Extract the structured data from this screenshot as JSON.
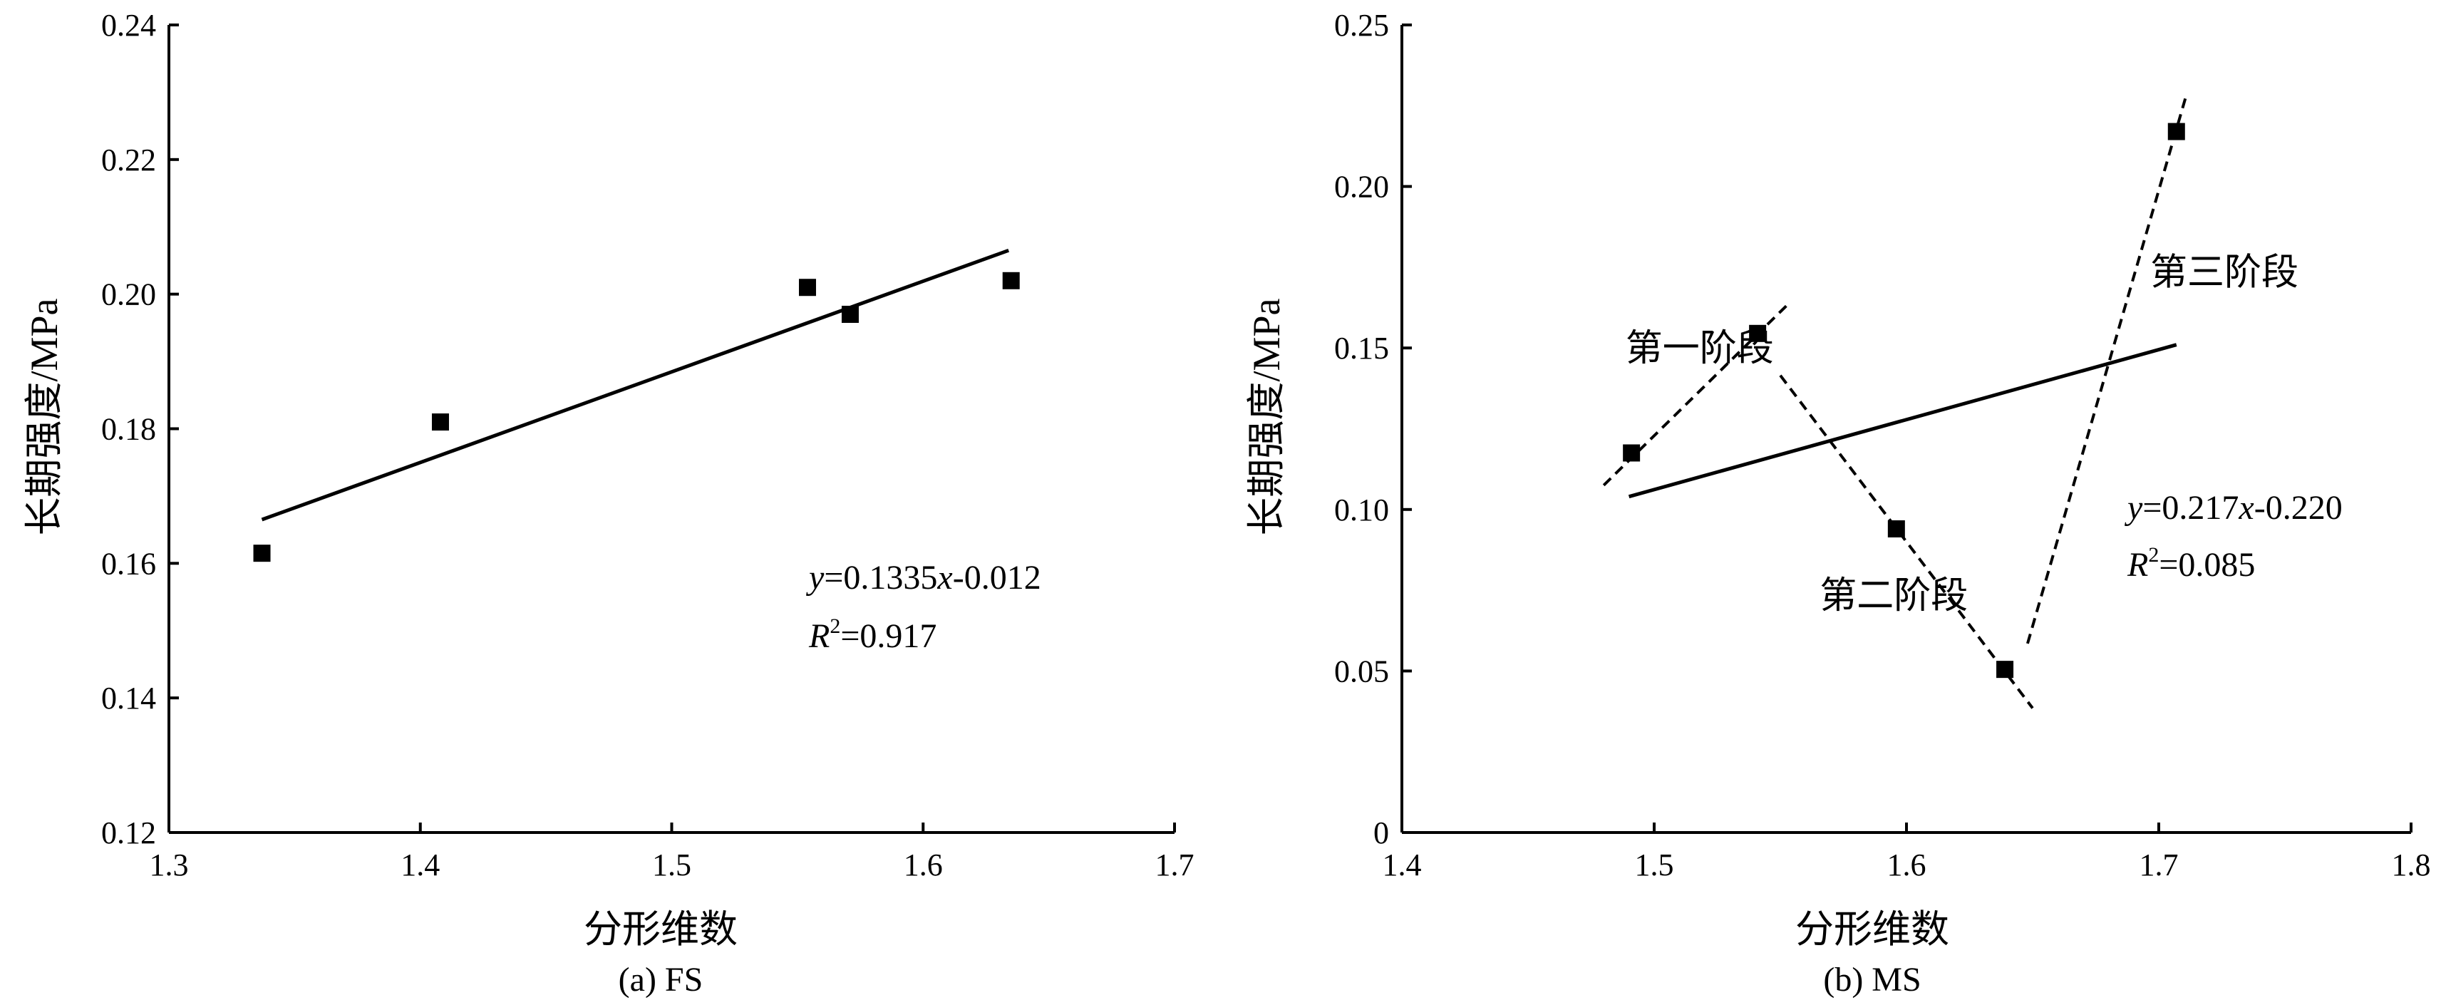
{
  "chart_data": [
    {
      "type": "scatter",
      "caption": "(a) FS",
      "xlabel": "分形维数",
      "ylabel": "长期强度/MPa",
      "xlim": [
        1.3,
        1.7
      ],
      "ylim": [
        0.12,
        0.24
      ],
      "xticks": [
        1.3,
        1.4,
        1.5,
        1.6,
        1.7
      ],
      "xtick_labels": [
        "1.3",
        "1.4",
        "1.5",
        "1.6",
        "1.7"
      ],
      "yticks": [
        0.12,
        0.14,
        0.16,
        0.18,
        0.2,
        0.22,
        0.24
      ],
      "ytick_labels": [
        "0.12",
        "0.14",
        "0.16",
        "0.18",
        "0.20",
        "0.22",
        "0.24"
      ],
      "points": [
        {
          "x": 1.337,
          "y": 0.1615
        },
        {
          "x": 1.408,
          "y": 0.181
        },
        {
          "x": 1.554,
          "y": 0.201
        },
        {
          "x": 1.571,
          "y": 0.197
        },
        {
          "x": 1.635,
          "y": 0.202
        }
      ],
      "fits": [
        {
          "style": "solid",
          "x": [
            1.337,
            1.634
          ],
          "y": [
            0.1665,
            0.2065
          ]
        }
      ],
      "equation": {
        "y_var": "y",
        "eq_rhs": "=0.1335",
        "x_var": "x",
        "eq_tail": "-0.012",
        "r_var": "R",
        "r_sup": "2",
        "r_rhs": "=0.917"
      },
      "grid": false
    },
    {
      "type": "scatter",
      "caption": "(b) MS",
      "xlabel": "分形维数",
      "ylabel": "长期强度/MPa",
      "xlim": [
        1.4,
        1.8
      ],
      "ylim": [
        0,
        0.25
      ],
      "xticks": [
        1.4,
        1.5,
        1.6,
        1.7,
        1.8
      ],
      "xtick_labels": [
        "1.4",
        "1.5",
        "1.6",
        "1.7",
        "1.8"
      ],
      "yticks": [
        0,
        0.05,
        0.1,
        0.15,
        0.2,
        0.25
      ],
      "ytick_labels": [
        "0",
        "0.05",
        "0.10",
        "0.15",
        "0.20",
        "0.25"
      ],
      "points": [
        {
          "x": 1.491,
          "y": 0.1175
        },
        {
          "x": 1.541,
          "y": 0.1545
        },
        {
          "x": 1.596,
          "y": 0.094
        },
        {
          "x": 1.639,
          "y": 0.0505
        },
        {
          "x": 1.707,
          "y": 0.217
        }
      ],
      "fits": [
        {
          "style": "solid",
          "x": [
            1.49,
            1.707
          ],
          "y": [
            0.104,
            0.151
          ]
        },
        {
          "style": "dashed",
          "x": [
            1.48,
            1.553
          ],
          "y": [
            0.1075,
            0.1635
          ]
        },
        {
          "style": "dashed",
          "x": [
            1.55,
            1.65
          ],
          "y": [
            0.1415,
            0.0385
          ]
        },
        {
          "style": "dashed",
          "x": [
            1.648,
            1.711
          ],
          "y": [
            0.0585,
            0.2285
          ]
        }
      ],
      "stage_labels": [
        {
          "text": "第一阶段",
          "x": 1.518,
          "y": 0.15
        },
        {
          "text": "第二阶段",
          "x": 1.595,
          "y": 0.0735
        },
        {
          "text": "第三阶段",
          "x": 1.726,
          "y": 0.1735
        }
      ],
      "equation": {
        "y_var": "y",
        "eq_rhs": "=0.217",
        "x_var": "x",
        "eq_tail": "-0.220",
        "r_var": "R",
        "r_sup": "2",
        "r_rhs": "=0.085"
      },
      "grid": false
    }
  ]
}
